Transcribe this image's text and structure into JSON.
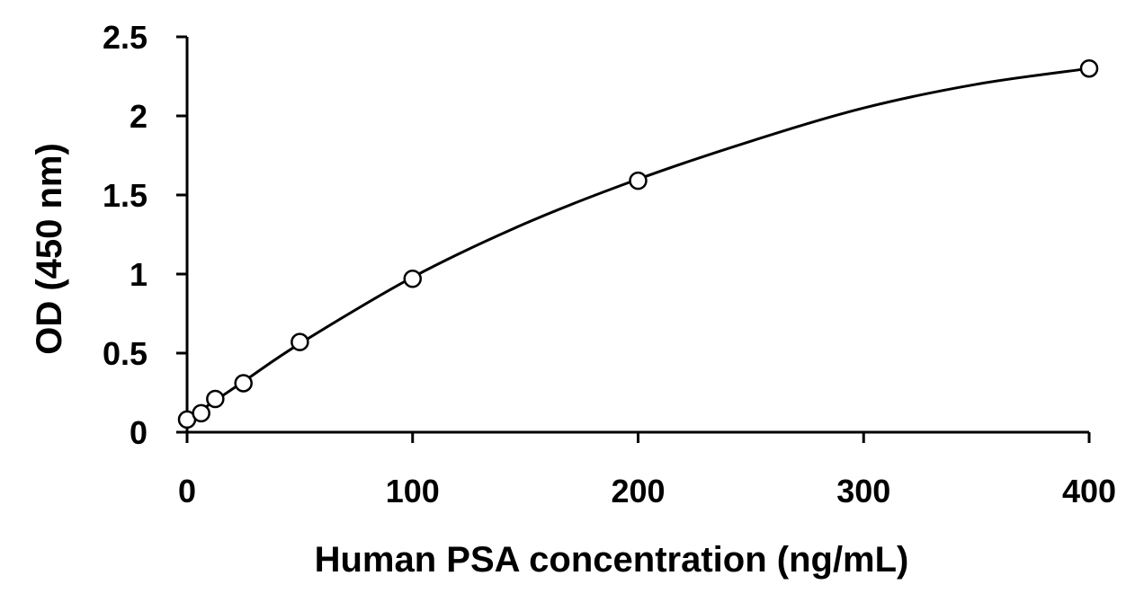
{
  "chart_data": {
    "type": "scatter",
    "title": "",
    "xlabel": "Human PSA concentration (ng/mL)",
    "ylabel": "OD (450 nm)",
    "xlim": [
      0,
      400
    ],
    "ylim": [
      0,
      2.5
    ],
    "x_ticks": [
      "0",
      "100",
      "200",
      "300",
      "400"
    ],
    "y_ticks": [
      "0",
      "0.5",
      "1",
      "1.5",
      "2",
      "2.5"
    ],
    "grid": false,
    "legend": false,
    "series": [
      {
        "marker": "open-circle",
        "x": [
          0,
          6.25,
          12.5,
          25,
          50,
          100,
          200,
          400
        ],
        "y": [
          0.08,
          0.12,
          0.21,
          0.31,
          0.57,
          0.97,
          1.59,
          2.3
        ]
      }
    ],
    "fit_curve": {
      "style": "smooth-line",
      "x": [
        0,
        25,
        50,
        100,
        150,
        200,
        250,
        300,
        350,
        400
      ],
      "y": [
        0.08,
        0.32,
        0.56,
        0.98,
        1.32,
        1.6,
        1.84,
        2.05,
        2.2,
        2.3
      ]
    },
    "colors": {
      "axis": "#000000",
      "marker": "#000000",
      "line": "#000000"
    }
  }
}
